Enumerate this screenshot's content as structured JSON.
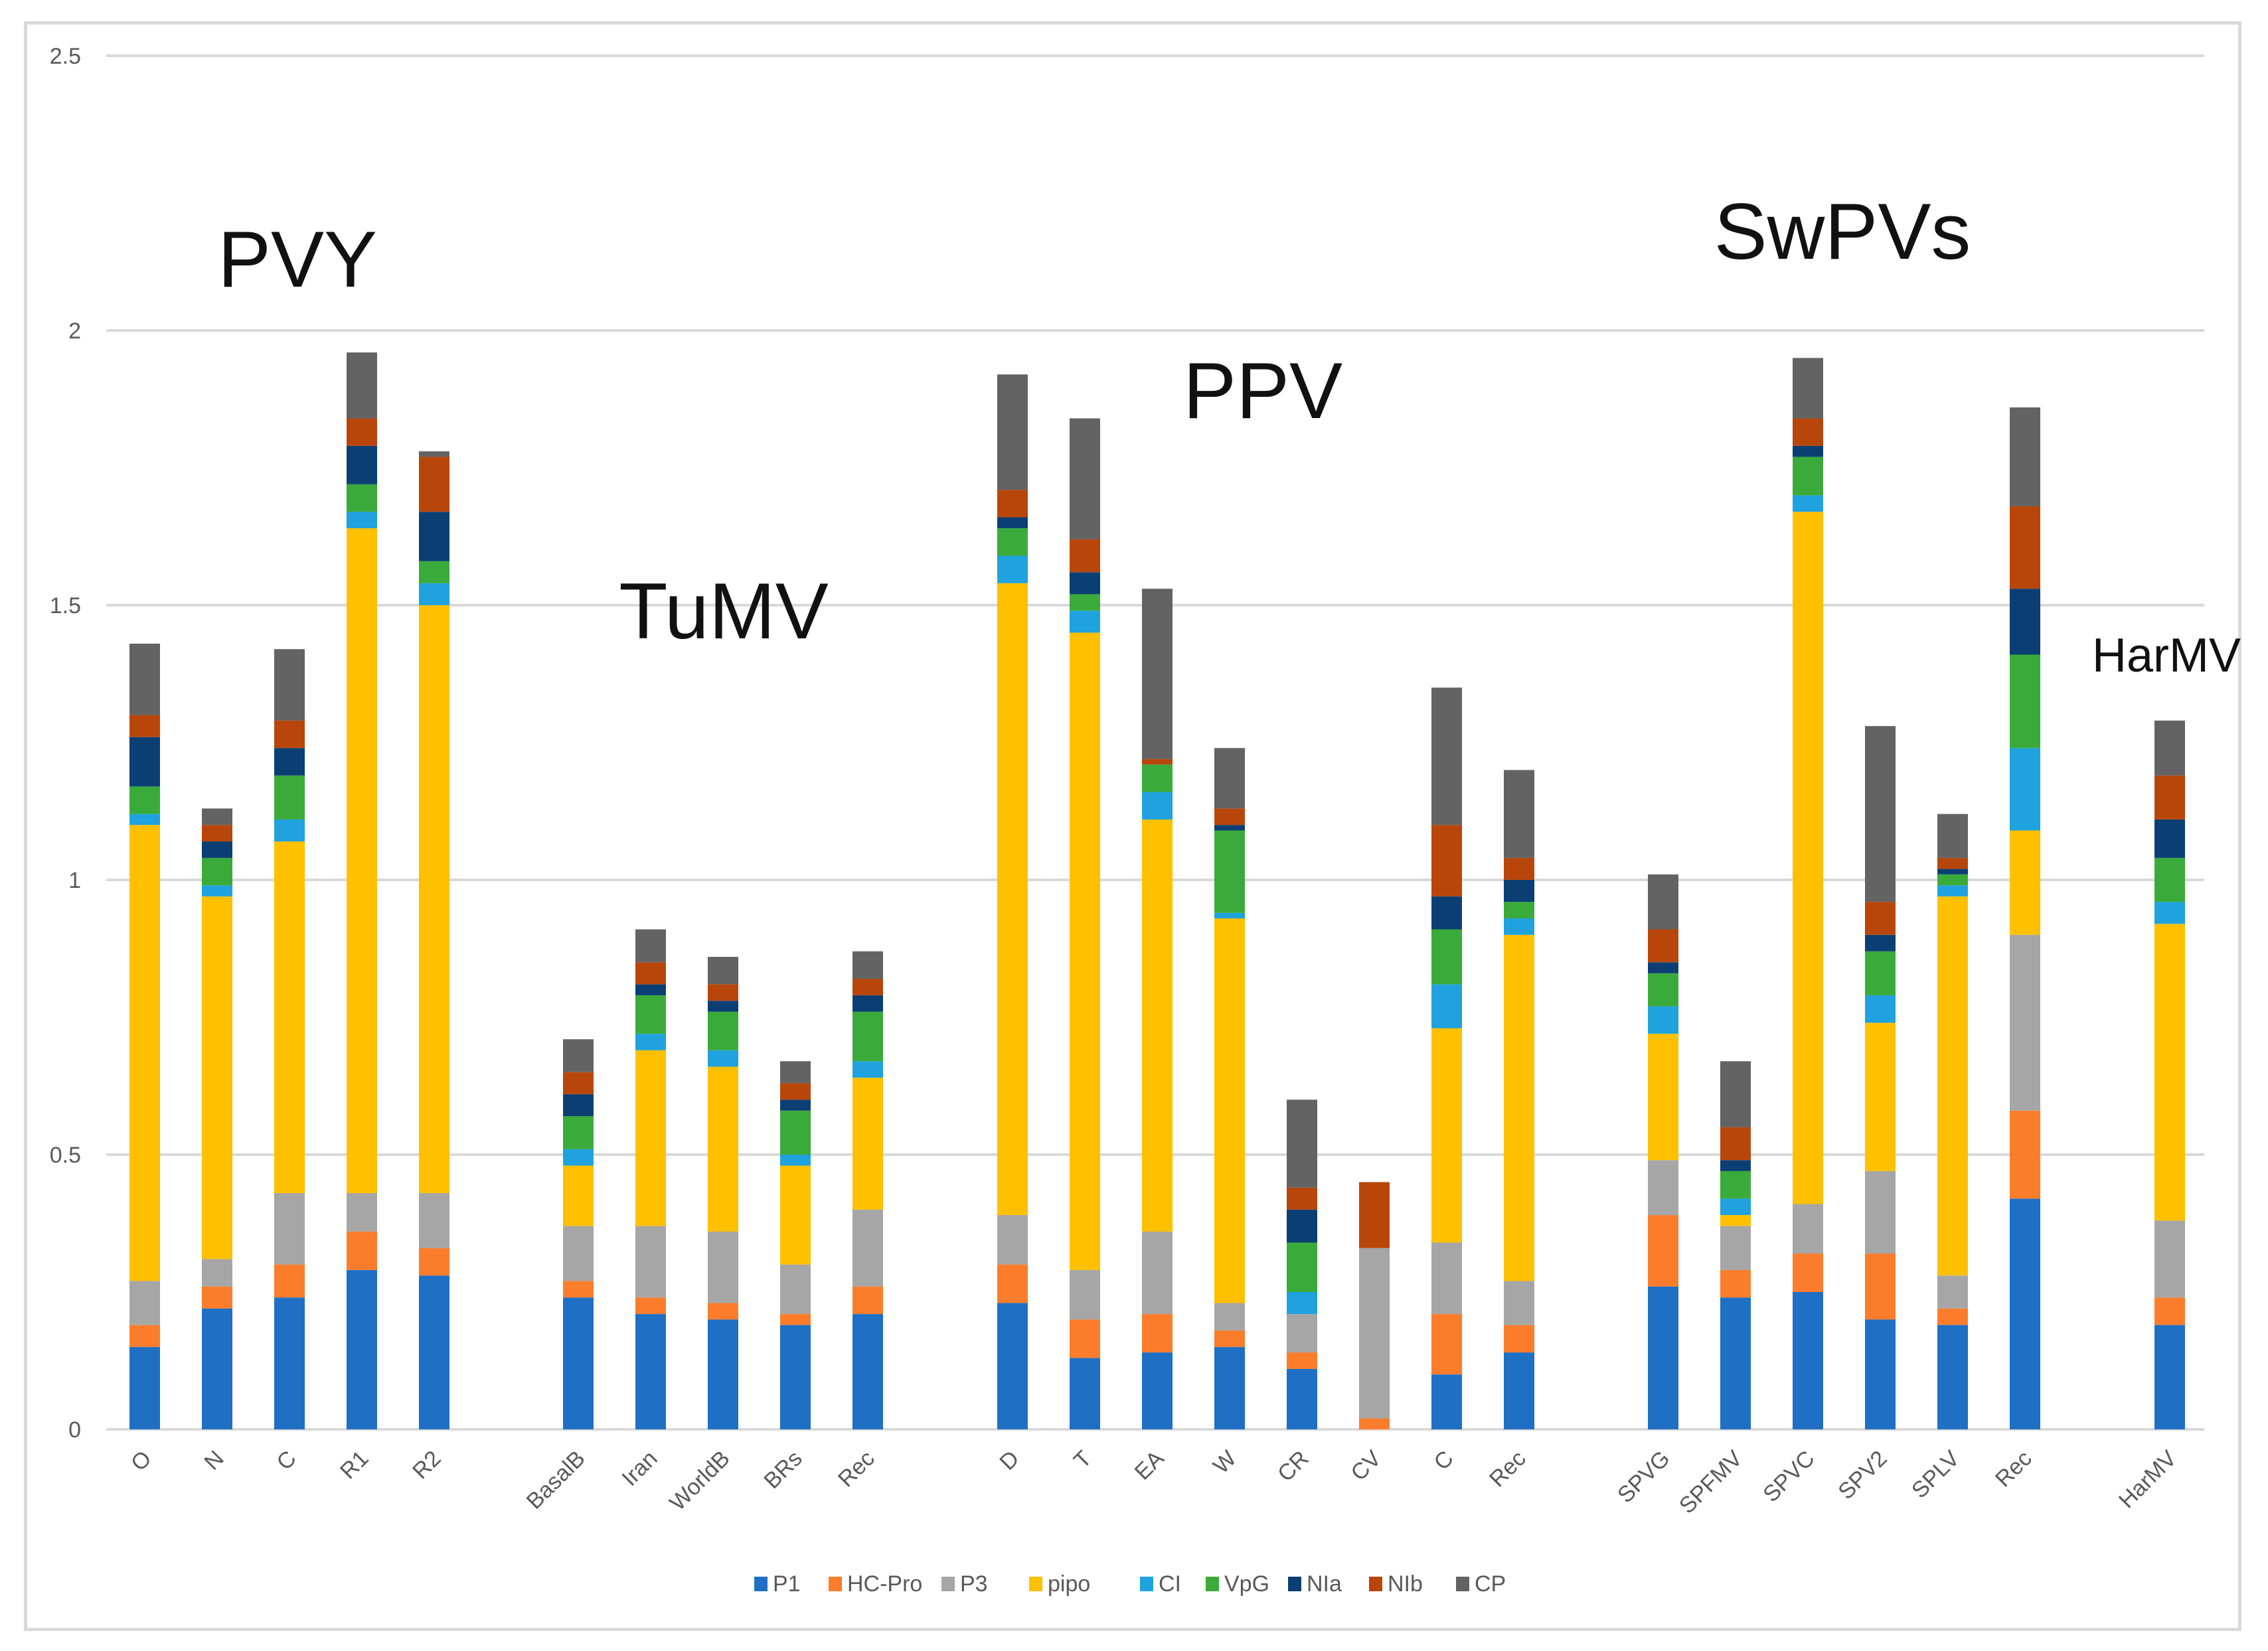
{
  "chart_data": {
    "type": "bar",
    "stacked": true,
    "ylim": [
      0,
      2.5
    ],
    "yticks": [
      "0",
      "0.5",
      "1",
      "1.5",
      "2",
      "2.5"
    ],
    "grid": true,
    "legend_position": "bottom",
    "series_names": [
      "P1",
      "HC-Pro",
      "P3",
      "pipo",
      "CI",
      "VpG",
      "NIa",
      "NIb",
      "CP"
    ],
    "colors": [
      "#1f6fc5",
      "#fb7d2c",
      "#a6a6a6",
      "#ffc000",
      "#1fa2dd",
      "#3aab3a",
      "#0b3f74",
      "#b8460b",
      "#636363"
    ],
    "groups": [
      {
        "label": "PVY",
        "categories": [
          "O",
          "N",
          "C",
          "R1",
          "R2"
        ]
      },
      {
        "label": "TuMV",
        "categories": [
          "BasalB",
          "Iran",
          "WorldB",
          "BRs",
          "Rec"
        ]
      },
      {
        "label": "PPV",
        "categories": [
          "D",
          "T",
          "EA",
          "W",
          "CR",
          "CV",
          "C",
          "Rec"
        ]
      },
      {
        "label": "SwPVs",
        "categories": [
          "SPVG",
          "SPFMV",
          "SPVC",
          "SPV2",
          "SPLV",
          "Rec"
        ]
      },
      {
        "label": "HarMV",
        "categories": [
          "HarMV"
        ]
      }
    ],
    "bars": [
      {
        "category": "O",
        "values": [
          0.15,
          0.04,
          0.08,
          0.83,
          0.02,
          0.05,
          0.09,
          0.04,
          0.13
        ]
      },
      {
        "category": "N",
        "values": [
          0.22,
          0.04,
          0.05,
          0.66,
          0.02,
          0.05,
          0.03,
          0.03,
          0.03
        ]
      },
      {
        "category": "C",
        "values": [
          0.24,
          0.06,
          0.13,
          0.64,
          0.04,
          0.08,
          0.05,
          0.05,
          0.13
        ]
      },
      {
        "category": "R1",
        "values": [
          0.29,
          0.07,
          0.07,
          1.21,
          0.03,
          0.05,
          0.07,
          0.05,
          0.12
        ]
      },
      {
        "category": "R2",
        "values": [
          0.28,
          0.05,
          0.1,
          1.07,
          0.04,
          0.04,
          0.09,
          0.1,
          0.01
        ]
      },
      {
        "category": "BasalB",
        "values": [
          0.24,
          0.03,
          0.1,
          0.11,
          0.03,
          0.06,
          0.04,
          0.04,
          0.06
        ]
      },
      {
        "category": "Iran",
        "values": [
          0.21,
          0.03,
          0.13,
          0.32,
          0.03,
          0.07,
          0.02,
          0.04,
          0.06
        ]
      },
      {
        "category": "WorldB",
        "values": [
          0.2,
          0.03,
          0.13,
          0.3,
          0.03,
          0.07,
          0.02,
          0.03,
          0.05
        ]
      },
      {
        "category": "BRs",
        "values": [
          0.19,
          0.02,
          0.09,
          0.18,
          0.02,
          0.08,
          0.02,
          0.03,
          0.04
        ]
      },
      {
        "category": "Rec",
        "values": [
          0.21,
          0.05,
          0.14,
          0.24,
          0.03,
          0.09,
          0.03,
          0.03,
          0.05
        ]
      },
      {
        "category": "D",
        "values": [
          0.23,
          0.07,
          0.09,
          1.15,
          0.05,
          0.05,
          0.02,
          0.05,
          0.21
        ]
      },
      {
        "category": "T",
        "values": [
          0.13,
          0.07,
          0.09,
          1.16,
          0.04,
          0.03,
          0.04,
          0.06,
          0.22
        ]
      },
      {
        "category": "EA",
        "values": [
          0.14,
          0.07,
          0.15,
          0.75,
          0.05,
          0.05,
          0.0,
          0.01,
          0.31
        ]
      },
      {
        "category": "W",
        "values": [
          0.15,
          0.03,
          0.05,
          0.7,
          0.01,
          0.15,
          0.01,
          0.03,
          0.11
        ]
      },
      {
        "category": "CR",
        "values": [
          0.11,
          0.03,
          0.07,
          0.0,
          0.04,
          0.09,
          0.06,
          0.04,
          0.16
        ]
      },
      {
        "category": "CV",
        "values": [
          0.0,
          0.02,
          0.31,
          0.0,
          0.0,
          0.0,
          0.0,
          0.12,
          0.0
        ]
      },
      {
        "category": "C",
        "values": [
          0.1,
          0.11,
          0.13,
          0.39,
          0.08,
          0.1,
          0.06,
          0.13,
          0.25
        ]
      },
      {
        "category": "Rec",
        "values": [
          0.14,
          0.05,
          0.08,
          0.63,
          0.03,
          0.03,
          0.04,
          0.04,
          0.16
        ]
      },
      {
        "category": "SPVG",
        "values": [
          0.26,
          0.13,
          0.1,
          0.23,
          0.05,
          0.06,
          0.02,
          0.06,
          0.1
        ]
      },
      {
        "category": "SPFMV",
        "values": [
          0.24,
          0.05,
          0.08,
          0.02,
          0.03,
          0.05,
          0.02,
          0.06,
          0.12
        ]
      },
      {
        "category": "SPVC",
        "values": [
          0.25,
          0.07,
          0.09,
          1.26,
          0.03,
          0.07,
          0.02,
          0.05,
          0.11
        ]
      },
      {
        "category": "SPV2",
        "values": [
          0.2,
          0.12,
          0.15,
          0.27,
          0.05,
          0.08,
          0.03,
          0.06,
          0.32
        ]
      },
      {
        "category": "SPLV",
        "values": [
          0.19,
          0.03,
          0.06,
          0.69,
          0.02,
          0.02,
          0.01,
          0.02,
          0.08
        ]
      },
      {
        "category": "Rec",
        "values": [
          0.42,
          0.16,
          0.32,
          0.19,
          0.15,
          0.17,
          0.12,
          0.15,
          0.18
        ]
      },
      {
        "category": "HarMV",
        "values": [
          0.19,
          0.05,
          0.14,
          0.54,
          0.04,
          0.08,
          0.07,
          0.08,
          0.1
        ]
      }
    ]
  }
}
